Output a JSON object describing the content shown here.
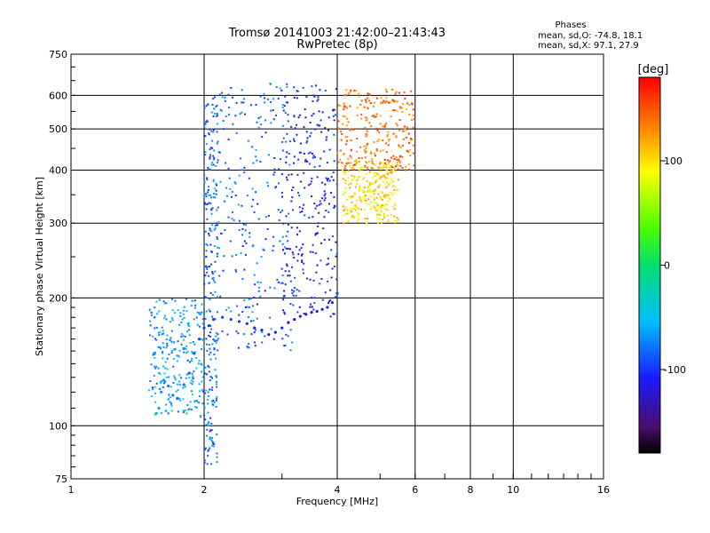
{
  "chart_data": {
    "type": "scatter",
    "title": "Tromsø 20141003 21:42:00–21:43:43",
    "subtitle": "RwPretec (8p)",
    "xlabel": "Frequency [MHz]",
    "ylabel": "Stationary phase Virtual Height [km]",
    "x_scale": "log",
    "y_scale": "log",
    "xlim": [
      1,
      16
    ],
    "ylim": [
      75,
      750
    ],
    "x_ticks": [
      "1",
      "2",
      "4",
      "6",
      "8",
      "10",
      "16"
    ],
    "y_ticks": [
      "75",
      "100",
      "200",
      "300",
      "400",
      "500",
      "600",
      "750"
    ],
    "grid": true,
    "phase_stats": {
      "heading": "Phases",
      "line_o": "mean, sd,O:  -74.8, 18.1",
      "line_x": "mean, sd,X:   97.1, 27.9"
    },
    "colorbar": {
      "label": "[deg]",
      "ticks": [
        "100",
        "0",
        "-100"
      ],
      "range": [
        -180,
        180
      ]
    },
    "clusters": [
      {
        "x": [
          2.0,
          2.15
        ],
        "y": [
          80,
          620
        ],
        "phase_deg": -80
      },
      {
        "x": [
          2.15,
          3.2
        ],
        "y": [
          150,
          640
        ],
        "phase_deg": -85
      },
      {
        "x": [
          3.0,
          4.0
        ],
        "y": [
          180,
          640
        ],
        "phase_deg": -110
      },
      {
        "x": [
          1.5,
          2.0
        ],
        "y": [
          105,
          200
        ],
        "phase_deg": -65
      },
      {
        "x": [
          4.1,
          5.5
        ],
        "y": [
          300,
          420
        ],
        "phase_deg": 100
      },
      {
        "x": [
          4.0,
          6.0
        ],
        "y": [
          400,
          620
        ],
        "phase_deg": 140
      }
    ],
    "series": [
      {
        "mode": "O",
        "x": [
          1.56,
          1.58,
          1.6,
          1.62,
          1.66,
          1.7,
          1.74,
          1.8,
          1.85,
          1.9,
          1.95,
          2.0,
          2.05,
          2.1,
          2.2,
          2.3,
          2.4,
          2.5,
          2.6,
          2.7,
          2.8,
          2.9,
          3.0,
          3.1,
          3.2,
          3.3,
          3.4,
          3.5,
          3.6,
          3.7,
          3.8,
          3.9,
          4.0
        ],
        "y": [
          107,
          110,
          120,
          128,
          124,
          118,
          116,
          125,
          133,
          148,
          160,
          170,
          172,
          178,
          180,
          178,
          176,
          174,
          170,
          168,
          164,
          166,
          170,
          175,
          178,
          181,
          183,
          185,
          186,
          188,
          190,
          195,
          205
        ],
        "phase_deg": [
          -60,
          -65,
          -70,
          -70,
          -75,
          -80,
          -85,
          -80,
          -85,
          -90,
          -95,
          -95,
          -100,
          -100,
          -95,
          -100,
          -100,
          -105,
          -105,
          -105,
          -110,
          -110,
          -110,
          -115,
          -115,
          -115,
          -120,
          -115,
          -115,
          -110,
          -105,
          -100,
          -95
        ]
      },
      {
        "mode": "X",
        "x": [
          4.3,
          4.4,
          4.5,
          4.6,
          4.7,
          4.8,
          4.9,
          5.0,
          5.1,
          5.2,
          5.3
        ],
        "y": [
          320,
          330,
          345,
          355,
          365,
          372,
          378,
          383,
          388,
          392,
          395
        ],
        "phase_deg": [
          110,
          105,
          100,
          100,
          95,
          95,
          100,
          105,
          110,
          115,
          120
        ]
      }
    ]
  }
}
